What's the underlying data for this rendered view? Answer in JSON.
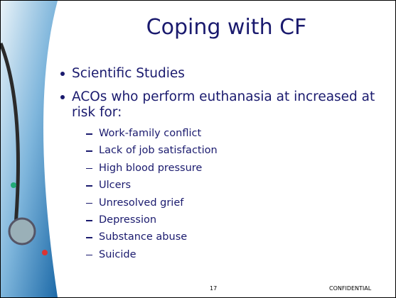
{
  "slide": {
    "title": "Coping with CF",
    "bullets": [
      {
        "text": "Scientific Studies"
      },
      {
        "text": "ACOs who perform euthanasia at increased at risk for:",
        "subitems": [
          "Work-family conflict",
          "Lack of job satisfaction",
          "High blood pressure",
          "Ulcers",
          "Unresolved grief",
          "Depression",
          "Substance abuse",
          "Suicide"
        ]
      }
    ],
    "footer": {
      "page_number": "17",
      "label": "CONFIDENTIAL"
    }
  }
}
